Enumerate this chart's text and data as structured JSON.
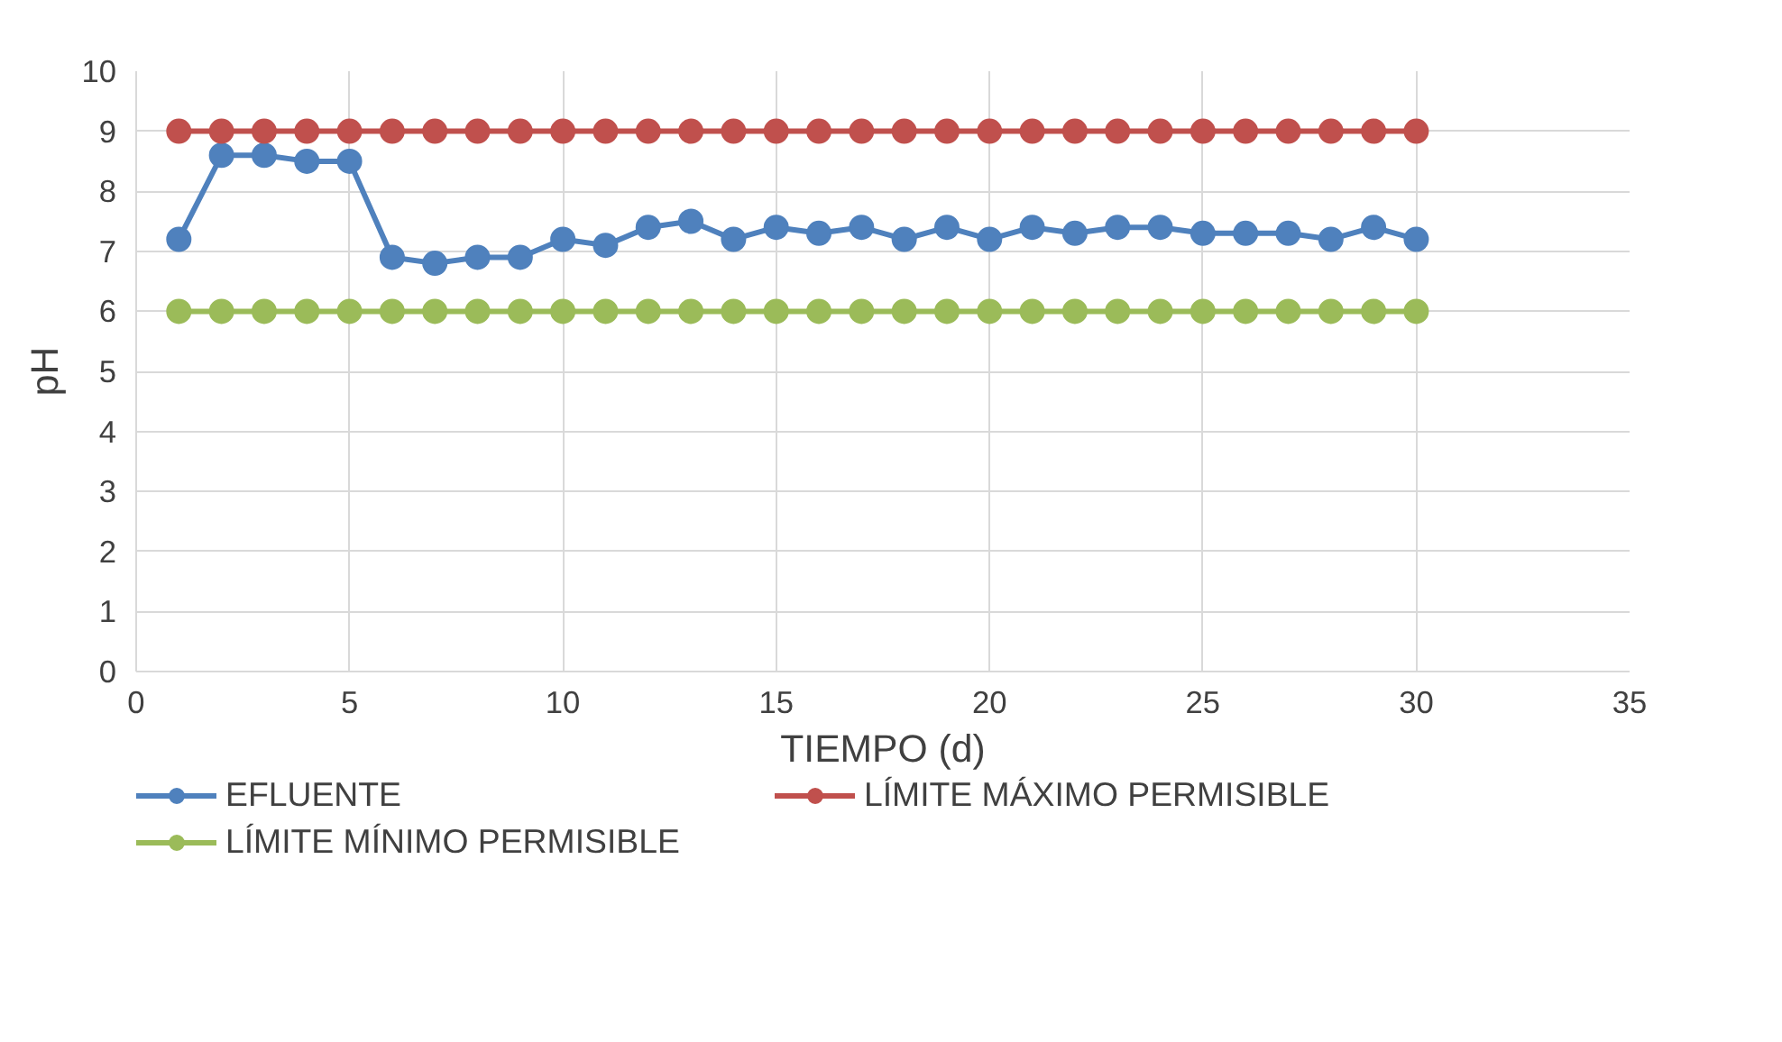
{
  "chart_data": {
    "type": "line",
    "xlabel": "TIEMPO (d)",
    "ylabel": "pH",
    "x": [
      1,
      2,
      3,
      4,
      5,
      6,
      7,
      8,
      9,
      10,
      11,
      12,
      13,
      14,
      15,
      16,
      17,
      18,
      19,
      20,
      21,
      22,
      23,
      24,
      25,
      26,
      27,
      28,
      29,
      30
    ],
    "series": [
      {
        "name": "EFLUENTE",
        "color": "#4f81bd",
        "values": [
          7.2,
          8.6,
          8.6,
          8.5,
          8.5,
          6.9,
          6.8,
          6.9,
          6.9,
          7.2,
          7.1,
          7.4,
          7.5,
          7.2,
          7.4,
          7.3,
          7.4,
          7.2,
          7.4,
          7.2,
          7.4,
          7.3,
          7.4,
          7.4,
          7.3,
          7.3,
          7.3,
          7.2,
          7.4,
          7.2
        ]
      },
      {
        "name": "LÍMITE MÁXIMO PERMISIBLE",
        "color": "#c0504d",
        "values": [
          9,
          9,
          9,
          9,
          9,
          9,
          9,
          9,
          9,
          9,
          9,
          9,
          9,
          9,
          9,
          9,
          9,
          9,
          9,
          9,
          9,
          9,
          9,
          9,
          9,
          9,
          9,
          9,
          9,
          9
        ]
      },
      {
        "name": "LÍMITE MÍNIMO PERMISIBLE",
        "color": "#9bbb59",
        "values": [
          6,
          6,
          6,
          6,
          6,
          6,
          6,
          6,
          6,
          6,
          6,
          6,
          6,
          6,
          6,
          6,
          6,
          6,
          6,
          6,
          6,
          6,
          6,
          6,
          6,
          6,
          6,
          6,
          6,
          6
        ]
      }
    ],
    "xlim": [
      0,
      35
    ],
    "xticks": [
      0,
      5,
      10,
      15,
      20,
      25,
      30,
      35
    ],
    "ylim": [
      0,
      10
    ],
    "yticks": [
      0,
      1,
      2,
      3,
      4,
      5,
      6,
      7,
      8,
      9,
      10
    ],
    "grid": true,
    "legend": "bottom",
    "marker": "circle",
    "line_style": "solid"
  }
}
